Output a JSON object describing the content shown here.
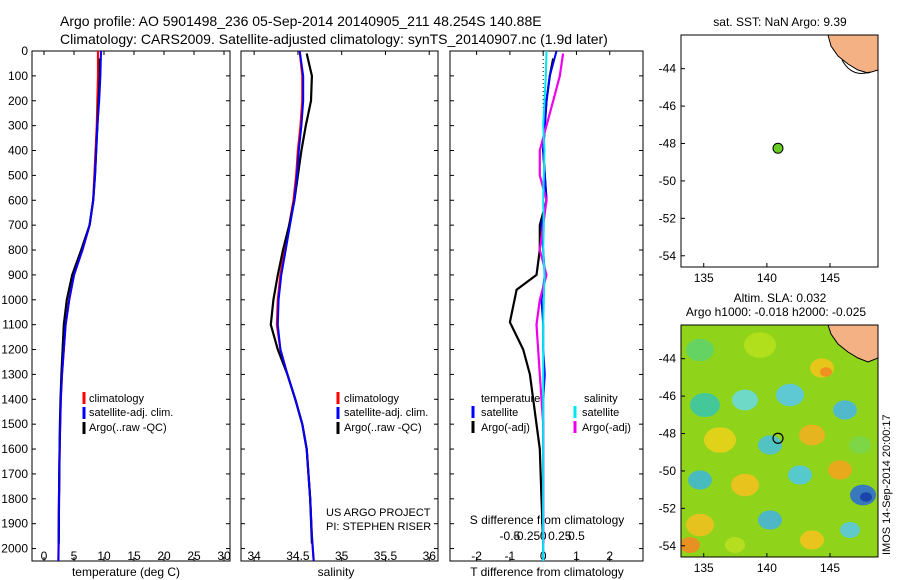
{
  "header": {
    "line1": "Argo profile: AO 5901498_236 05-Sep-2014 20140905_211 48.254S 140.88E",
    "line2": "Climatology: CARS2009. Satellite-adjusted climatology: synTS_20140907.nc (1.9d later)"
  },
  "credit": [
    "US ARGO PROJECT",
    "PI: STEPHEN RISER"
  ],
  "side_label": "IMOS 14-Sep-2014 20:00:17",
  "colors": {
    "climatology": "#ff0000",
    "satellite": "#0000ff",
    "argo": "#000000",
    "sat_salinity": "#00e5ee",
    "argo_salinity": "#ee00ee",
    "land": "#f4b183",
    "float_marker": "#66cc22"
  },
  "chart_data": [
    {
      "type": "line",
      "id": "temperature",
      "xlabel": "temperature (deg C)",
      "xlim": [
        -2,
        31
      ],
      "ylim": [
        2050,
        0
      ],
      "xticks": [
        0,
        5,
        10,
        15,
        20,
        25,
        30
      ],
      "yticks": [
        0,
        100,
        200,
        300,
        400,
        500,
        600,
        700,
        800,
        900,
        1000,
        1100,
        1200,
        1300,
        1400,
        1500,
        1600,
        1700,
        1800,
        1900,
        2000
      ],
      "legend": [
        "climatology",
        "satellite-adj. clim.",
        "Argo(..raw -QC)"
      ],
      "series": [
        {
          "name": "climatology",
          "x": [
            9.0,
            9.0,
            8.9,
            8.8,
            8.6,
            8.4,
            8.2,
            7.6,
            6.4,
            5.0,
            4.2,
            3.6,
            3.3,
            3.0,
            2.8,
            2.7,
            2.6,
            2.5,
            2.45,
            2.4
          ],
          "y": [
            0,
            100,
            200,
            300,
            400,
            500,
            600,
            700,
            800,
            900,
            1000,
            1100,
            1200,
            1300,
            1400,
            1500,
            1600,
            1800,
            1950,
            2050
          ]
        },
        {
          "name": "satellite-adj. clim.",
          "x": [
            9.5,
            9.4,
            9.2,
            8.9,
            8.7,
            8.5,
            8.2,
            7.6,
            6.4,
            5.0,
            4.2,
            3.6,
            3.3,
            3.0,
            2.8,
            2.7,
            2.6,
            2.5,
            2.45,
            2.4
          ],
          "y": [
            0,
            100,
            200,
            300,
            400,
            500,
            600,
            700,
            800,
            900,
            1000,
            1100,
            1200,
            1300,
            1400,
            1500,
            1600,
            1800,
            1950,
            2050
          ]
        },
        {
          "name": "Argo(..raw -QC)",
          "x": [
            9.3,
            9.3,
            9.1,
            8.9,
            8.7,
            8.5,
            8.2,
            7.6,
            6.2,
            4.7,
            3.8,
            3.3,
            3.1,
            2.9,
            2.75,
            2.65,
            2.6,
            2.5,
            2.45
          ],
          "y": [
            30,
            100,
            200,
            300,
            400,
            500,
            600,
            700,
            800,
            900,
            1000,
            1100,
            1200,
            1300,
            1400,
            1500,
            1600,
            1800,
            1980
          ]
        }
      ]
    },
    {
      "type": "line",
      "id": "salinity",
      "xlabel": "salinity",
      "xlim": [
        33.85,
        36.1
      ],
      "ylim": [
        2050,
        0
      ],
      "xticks": [
        34,
        34.5,
        35,
        35.5,
        36
      ],
      "legend": [
        "climatology",
        "satellite-adj. clim.",
        "Argo(..raw -QC)"
      ],
      "series": [
        {
          "name": "climatology",
          "x": [
            34.52,
            34.55,
            34.55,
            34.53,
            34.5,
            34.48,
            34.45,
            34.4,
            34.35,
            34.3,
            34.27,
            34.26,
            34.3,
            34.38,
            34.47,
            34.55,
            34.6,
            34.64,
            34.66,
            34.68
          ],
          "y": [
            0,
            100,
            200,
            300,
            400,
            500,
            600,
            700,
            800,
            900,
            1000,
            1100,
            1200,
            1300,
            1400,
            1500,
            1600,
            1800,
            1950,
            2050
          ]
        },
        {
          "name": "satellite-adj. clim.",
          "x": [
            34.52,
            34.56,
            34.56,
            34.54,
            34.51,
            34.49,
            34.46,
            34.41,
            34.36,
            34.31,
            34.28,
            34.27,
            34.3,
            34.38,
            34.47,
            34.55,
            34.6,
            34.64,
            34.66,
            34.68
          ],
          "y": [
            0,
            100,
            200,
            300,
            400,
            500,
            600,
            700,
            800,
            900,
            1000,
            1100,
            1200,
            1300,
            1400,
            1500,
            1600,
            1800,
            1950,
            2050
          ]
        },
        {
          "name": "Argo(..raw -QC)",
          "x": [
            34.6,
            34.66,
            34.65,
            34.59,
            34.54,
            34.5,
            34.46,
            34.4,
            34.33,
            34.27,
            34.22,
            34.19,
            34.27,
            34.38,
            34.47,
            34.55,
            34.6,
            34.64,
            34.66
          ],
          "y": [
            10,
            100,
            200,
            300,
            400,
            500,
            600,
            700,
            800,
            900,
            1000,
            1100,
            1200,
            1300,
            1400,
            1500,
            1600,
            1800,
            1980
          ]
        }
      ]
    },
    {
      "type": "line",
      "id": "differences",
      "xlabel": "T difference from climatology",
      "xlabel2": "S difference from climatology",
      "xlim": [
        -2.8,
        3.0
      ],
      "ylim": [
        2050,
        0
      ],
      "xticks": [
        -2,
        -1,
        0,
        1,
        2
      ],
      "xtick_labels": [
        "-2",
        "-1",
        "0",
        "1",
        "2"
      ],
      "sticks": [
        -0.5,
        -0.25,
        0,
        0.25,
        0.5
      ],
      "stick_labels": [
        "-0.5",
        "-0.25",
        "0",
        "0.25",
        "0.5"
      ],
      "legend_temperature": [
        "temperature",
        "satellite",
        "Argo(-adj)"
      ],
      "legend_salinity": [
        "salinity",
        "satellite",
        "Argo(-adj)"
      ],
      "series": [
        {
          "name": "temperature satellite",
          "x": [
            0.4,
            0.2,
            0.1,
            0.05,
            0.0,
            0.05,
            0.1,
            -0.05,
            0.0,
            0.05,
            -0.05,
            0.0,
            0.0,
            0.05,
            0.0,
            0.0,
            0.0,
            0.0,
            0.0
          ],
          "y": [
            0,
            100,
            200,
            300,
            400,
            500,
            600,
            700,
            800,
            900,
            1000,
            1100,
            1200,
            1300,
            1400,
            1500,
            1700,
            1900,
            2050
          ]
        },
        {
          "name": "temperature Argo(-adj)",
          "x": [
            0.3,
            0.2,
            0.1,
            0.05,
            0.0,
            0.05,
            0.1,
            -0.1,
            -0.1,
            -0.2,
            -0.8,
            -1.0,
            -0.6,
            -0.4,
            -0.3,
            -0.2,
            -0.1,
            -0.05,
            0.0
          ],
          "y": [
            30,
            100,
            200,
            300,
            400,
            500,
            600,
            700,
            800,
            900,
            960,
            1090,
            1200,
            1300,
            1400,
            1500,
            1600,
            1800,
            1980
          ]
        },
        {
          "name": "salinity satellite",
          "x": [
            0.05,
            0.04,
            0.02,
            0.0,
            0.02,
            0.01,
            0.0,
            0.01,
            0.0,
            0.02,
            0.01,
            0.0,
            0.0,
            0.0,
            0.0,
            0.0,
            0.0
          ],
          "y": [
            0,
            100,
            200,
            300,
            400,
            500,
            600,
            700,
            800,
            900,
            1000,
            1100,
            1300,
            1500,
            1700,
            1900,
            2050
          ]
        },
        {
          "name": "salinity Argo(-adj)",
          "x": [
            0.3,
            0.25,
            0.15,
            0.05,
            -0.05,
            -0.05,
            0.05,
            0.0,
            -0.05,
            0.05,
            -0.05,
            -0.1,
            -0.05,
            0.0,
            0.0,
            0.0,
            0.0
          ],
          "y": [
            10,
            100,
            200,
            300,
            400,
            500,
            600,
            700,
            800,
            900,
            1000,
            1100,
            1300,
            1500,
            1700,
            1900,
            1980
          ]
        }
      ]
    },
    {
      "type": "scatter",
      "id": "sst_map",
      "title": "sat. SST: NaN Argo: 9.39",
      "xlim": [
        133.2,
        148.8
      ],
      "ylim": [
        -54.6,
        -42.2
      ],
      "xticks": [
        135,
        140,
        145
      ],
      "yticks": [
        -44,
        -46,
        -48,
        -50,
        -52,
        -54
      ],
      "points": [
        {
          "lon": 140.88,
          "lat": -48.254
        }
      ]
    },
    {
      "type": "heatmap",
      "id": "sla_map",
      "title": "Altim. SLA: 0.032",
      "title2": "Argo h1000: -0.018 h2000: -0.025",
      "xlim": [
        133.2,
        148.8
      ],
      "ylim": [
        -54.6,
        -42.2
      ],
      "xticks": [
        135,
        140,
        145
      ],
      "yticks": [
        -44,
        -46,
        -48,
        -50,
        -52,
        -54
      ],
      "points": [
        {
          "lon": 140.88,
          "lat": -48.254
        }
      ]
    }
  ]
}
